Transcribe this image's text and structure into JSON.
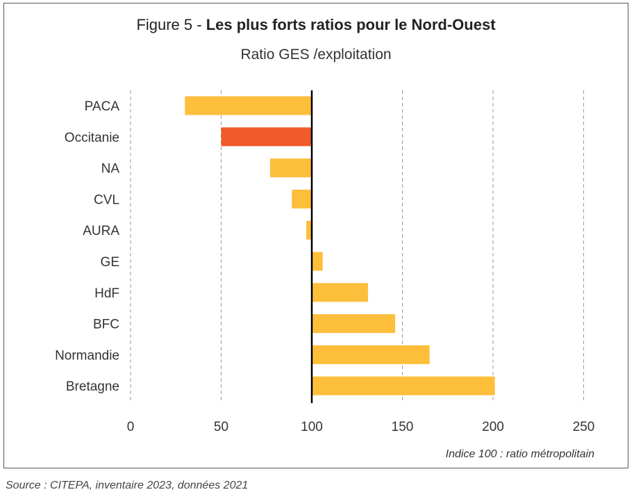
{
  "title": {
    "prefix": "Figure 5 - ",
    "bold": "Les plus forts ratios pour le Nord-Ouest"
  },
  "subtitle": "Ratio GES /exploitation",
  "note": "Indice 100 : ratio métropolitain",
  "source": "Source : CITEPA, inventaire 2023, données 2021",
  "colors": {
    "default": "#FDBE3B",
    "highlight": "#F15A2B",
    "reference_line": "#000000",
    "grid": "#999999"
  },
  "chart_data": {
    "type": "bar",
    "orientation": "horizontal",
    "reference_value": 100,
    "xlim": [
      0,
      250
    ],
    "x_ticks": [
      0,
      50,
      100,
      150,
      200,
      250
    ],
    "grid": true,
    "categories": [
      "PACA",
      "Occitanie",
      "NA",
      "CVL",
      "AURA",
      "GE",
      "HdF",
      "BFC",
      "Normandie",
      "Bretagne"
    ],
    "values": [
      30,
      50,
      77,
      89,
      97,
      106,
      131,
      146,
      165,
      201
    ],
    "highlight": [
      "Occitanie"
    ]
  }
}
